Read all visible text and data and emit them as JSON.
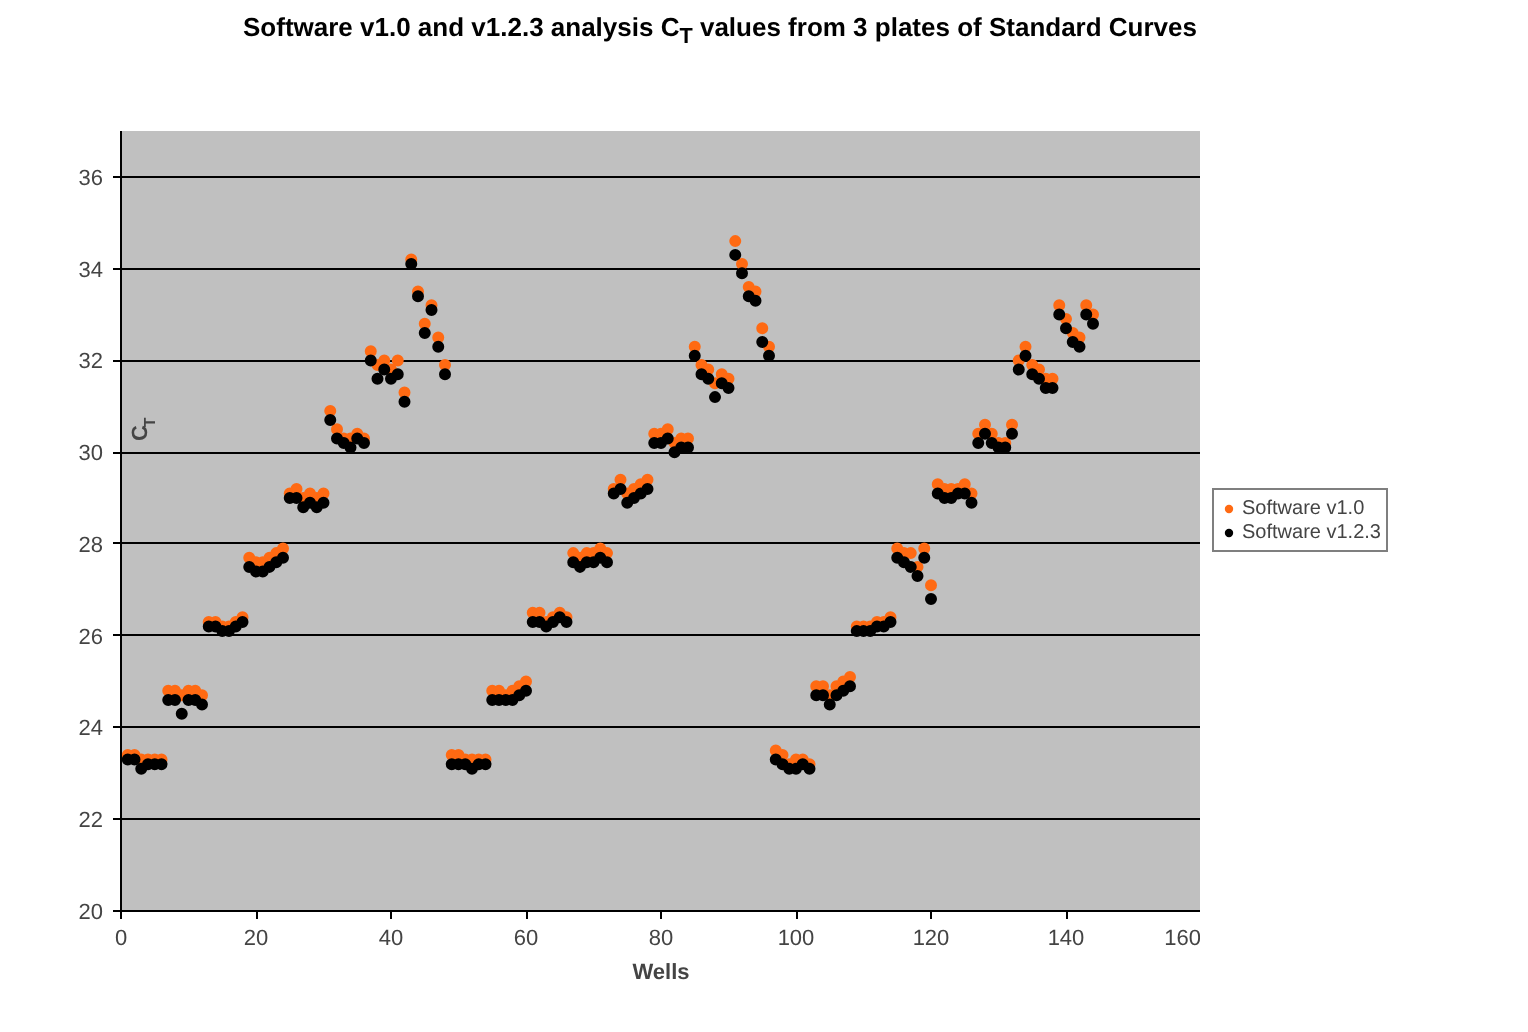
{
  "chart_data": {
    "type": "scatter",
    "title": "Software v1.0 and v1.2.3 analysis C$_{T}$ values from 3 plates of Standard Curves",
    "xlabel": "Wells",
    "ylabel": "C$_{T}$",
    "x": [
      1,
      2,
      3,
      4,
      5,
      6,
      7,
      8,
      9,
      10,
      11,
      12,
      13,
      14,
      15,
      16,
      17,
      18,
      19,
      20,
      21,
      22,
      23,
      24,
      25,
      26,
      27,
      28,
      29,
      30,
      31,
      32,
      33,
      34,
      35,
      36,
      37,
      38,
      39,
      40,
      41,
      42,
      43,
      44,
      45,
      46,
      47,
      48,
      49,
      50,
      51,
      52,
      53,
      54,
      55,
      56,
      57,
      58,
      59,
      60,
      61,
      62,
      63,
      64,
      65,
      66,
      67,
      68,
      69,
      70,
      71,
      72,
      73,
      74,
      75,
      76,
      77,
      78,
      79,
      80,
      81,
      82,
      83,
      84,
      85,
      86,
      87,
      88,
      89,
      90,
      91,
      92,
      93,
      94,
      95,
      96,
      97,
      98,
      99,
      100,
      101,
      102,
      103,
      104,
      105,
      106,
      107,
      108,
      109,
      110,
      111,
      112,
      113,
      114,
      115,
      116,
      117,
      118,
      119,
      120,
      121,
      122,
      123,
      124,
      125,
      126,
      127,
      128,
      129,
      130,
      131,
      132,
      133,
      134,
      135,
      136,
      137,
      138,
      139,
      140,
      141,
      142,
      143,
      144
    ],
    "series": [
      {
        "name": "Software v1.0",
        "color": "#ff6a13",
        "values": [
          23.4,
          23.4,
          23.3,
          23.3,
          23.3,
          23.3,
          24.8,
          24.8,
          24.7,
          24.8,
          24.8,
          24.7,
          26.3,
          26.3,
          26.2,
          26.2,
          26.3,
          26.4,
          27.7,
          27.6,
          27.6,
          27.7,
          27.8,
          27.9,
          29.1,
          29.2,
          29.0,
          29.1,
          29.0,
          29.1,
          30.9,
          30.5,
          30.3,
          30.3,
          30.4,
          30.3,
          32.2,
          31.9,
          32.0,
          31.8,
          32.0,
          31.3,
          34.2,
          33.5,
          32.8,
          33.2,
          32.5,
          31.9,
          23.4,
          23.4,
          23.3,
          23.3,
          23.3,
          23.3,
          24.8,
          24.8,
          24.7,
          24.8,
          24.9,
          25.0,
          26.5,
          26.5,
          26.3,
          26.4,
          26.5,
          26.4,
          27.8,
          27.7,
          27.8,
          27.8,
          27.9,
          27.8,
          29.2,
          29.4,
          29.1,
          29.2,
          29.3,
          29.4,
          30.4,
          30.4,
          30.5,
          30.2,
          30.3,
          30.3,
          32.3,
          31.9,
          31.8,
          31.5,
          31.7,
          31.6,
          34.6,
          34.1,
          33.6,
          33.5,
          32.7,
          32.3,
          23.5,
          23.4,
          23.2,
          23.3,
          23.3,
          23.2,
          24.9,
          24.9,
          24.7,
          24.9,
          25.0,
          25.1,
          26.2,
          26.2,
          26.2,
          26.3,
          26.3,
          26.4,
          27.9,
          27.8,
          27.8,
          27.5,
          27.9,
          27.1,
          29.3,
          29.2,
          29.2,
          29.2,
          29.3,
          29.1,
          30.4,
          30.6,
          30.4,
          30.2,
          30.2,
          30.6,
          32.0,
          32.3,
          31.9,
          31.8,
          31.6,
          31.6,
          33.2,
          32.9,
          32.6,
          32.5,
          33.2,
          33.0
        ]
      },
      {
        "name": "Software v1.2.3",
        "color": "#000000",
        "values": [
          23.3,
          23.3,
          23.1,
          23.2,
          23.2,
          23.2,
          24.6,
          24.6,
          24.3,
          24.6,
          24.6,
          24.5,
          26.2,
          26.2,
          26.1,
          26.1,
          26.2,
          26.3,
          27.5,
          27.4,
          27.4,
          27.5,
          27.6,
          27.7,
          29.0,
          29.0,
          28.8,
          28.9,
          28.8,
          28.9,
          30.7,
          30.3,
          30.2,
          30.1,
          30.3,
          30.2,
          32.0,
          31.6,
          31.8,
          31.6,
          31.7,
          31.1,
          34.1,
          33.4,
          32.6,
          33.1,
          32.3,
          31.7,
          23.2,
          23.2,
          23.2,
          23.1,
          23.2,
          23.2,
          24.6,
          24.6,
          24.6,
          24.6,
          24.7,
          24.8,
          26.3,
          26.3,
          26.2,
          26.3,
          26.4,
          26.3,
          27.6,
          27.5,
          27.6,
          27.6,
          27.7,
          27.6,
          29.1,
          29.2,
          28.9,
          29.0,
          29.1,
          29.2,
          30.2,
          30.2,
          30.3,
          30.0,
          30.1,
          30.1,
          32.1,
          31.7,
          31.6,
          31.2,
          31.5,
          31.4,
          34.3,
          33.9,
          33.4,
          33.3,
          32.4,
          32.1,
          23.3,
          23.2,
          23.1,
          23.1,
          23.2,
          23.1,
          24.7,
          24.7,
          24.5,
          24.7,
          24.8,
          24.9,
          26.1,
          26.1,
          26.1,
          26.2,
          26.2,
          26.3,
          27.7,
          27.6,
          27.5,
          27.3,
          27.7,
          26.8,
          29.1,
          29.0,
          29.0,
          29.1,
          29.1,
          28.9,
          30.2,
          30.4,
          30.2,
          30.1,
          30.1,
          30.4,
          31.8,
          32.1,
          31.7,
          31.6,
          31.4,
          31.4,
          33.0,
          32.7,
          32.4,
          32.3,
          33.0,
          32.8
        ]
      }
    ],
    "xlim": [
      0,
      160
    ],
    "xticks": [
      0,
      20,
      40,
      60,
      80,
      100,
      120,
      140,
      160
    ],
    "ylim": [
      20,
      37
    ],
    "yticks": [
      20,
      22,
      24,
      26,
      28,
      30,
      32,
      34,
      36
    ],
    "grid": "y",
    "legend": "right",
    "marker": "circle"
  }
}
